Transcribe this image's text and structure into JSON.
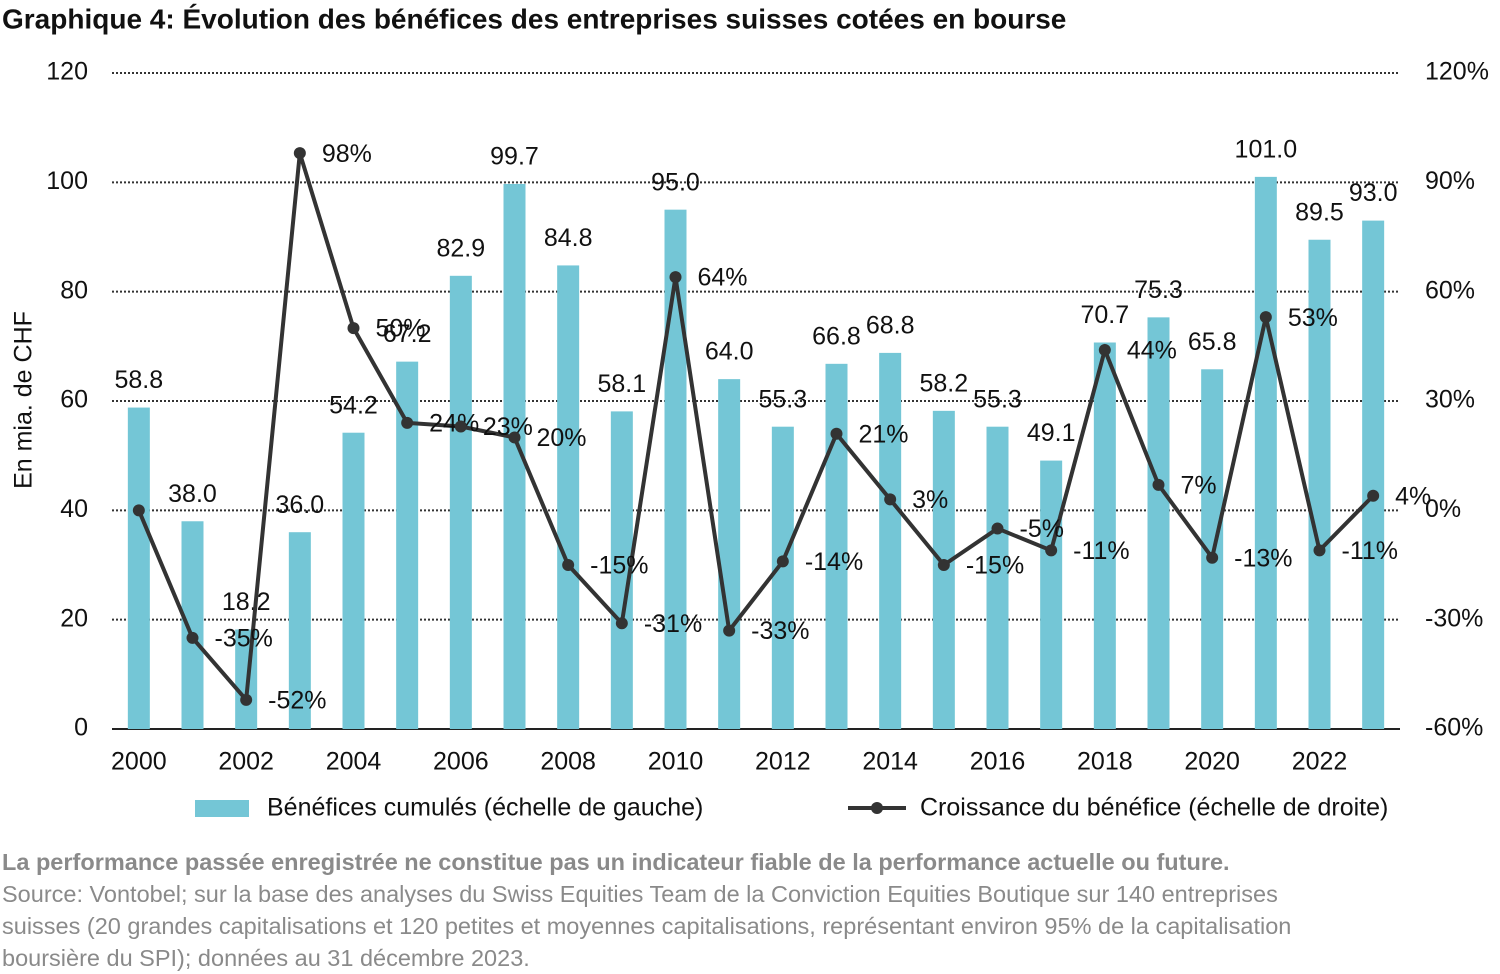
{
  "chart_data": {
    "type": "bar-line",
    "title": "Graphique 4: Évolution des bénéfices des entreprises suisses cotées en bourse",
    "y_label": "En mia. de CHF",
    "categories": [
      "2000",
      null,
      "2002",
      null,
      "2004",
      null,
      "2006",
      null,
      "2008",
      null,
      "2010",
      null,
      "2012",
      null,
      "2014",
      null,
      "2016",
      null,
      "2018",
      null,
      "2020",
      null,
      "2022",
      null
    ],
    "series": [
      {
        "name": "Bénéfices cumulés (échelle de gauche)",
        "type": "bar",
        "color": "#74c6d6",
        "values": [
          58.8,
          38.0,
          18.2,
          36.0,
          54.2,
          67.2,
          82.9,
          99.7,
          84.8,
          58.1,
          95.0,
          64.0,
          55.3,
          66.8,
          68.8,
          58.2,
          55.3,
          49.1,
          70.7,
          75.3,
          65.8,
          101.0,
          89.5,
          93.0
        ],
        "value_labels": [
          "58.8",
          "38.0",
          "18.2",
          "36.0",
          "54.2",
          "67.2",
          "82.9",
          "99.7",
          "84.8",
          "58.1",
          "95.0",
          "64.0",
          "55.3",
          "66.8",
          "68.8",
          "58.2",
          "55.3",
          "49.1",
          "70.7",
          "75.3",
          "65.8",
          "101.0",
          "89.5",
          "93.0"
        ]
      },
      {
        "name": "Croissance du bénéfice (échelle de droite)",
        "type": "line",
        "axis": "y2",
        "color": "#333333",
        "values": [
          0,
          -35,
          -52,
          98,
          50,
          24,
          23,
          20,
          -15,
          -31,
          64,
          -33,
          -14,
          21,
          3,
          -15,
          -5,
          -11,
          44,
          7,
          -13,
          53,
          -11,
          4
        ],
        "value_labels": [
          null,
          "-35%",
          "-52%",
          "98%",
          "50%",
          "24%",
          "23%",
          "20%",
          "-15%",
          "-31%",
          "64%",
          "-33%",
          "-14%",
          "21%",
          "3%",
          "-15%",
          "-5%",
          "-11%",
          "44%",
          "7%",
          "-13%",
          "53%",
          "-11%",
          "4%"
        ]
      }
    ],
    "ylim": [
      0,
      120
    ],
    "yticks": [
      0,
      20,
      40,
      60,
      80,
      100,
      120
    ],
    "y2lim": [
      -60,
      120
    ],
    "y2ticks": [
      {
        "value": -60,
        "label": "-60%"
      },
      {
        "value": -30,
        "label": "-30%"
      },
      {
        "value": 0,
        "label": "0%"
      },
      {
        "value": 30,
        "label": "30%"
      },
      {
        "value": 60,
        "label": "60%"
      },
      {
        "value": 90,
        "label": "90%"
      },
      {
        "value": 120,
        "label": "120%"
      }
    ],
    "grid": true,
    "legend": "bottom"
  },
  "footer": {
    "note": "La performance passée enregistrée ne constitue pas un indicateur fiable de la performance actuelle ou future.",
    "source": [
      "Source: Vontobel; sur la base des analyses du Swiss Equities Team de la Conviction Equities Boutique sur 140 entreprises",
      "suisses (20 grandes capitalisations et 120 petites et moyennes capitalisations, représentant environ 95% de la capitalisation",
      "boursière du SPI); données au 31 décembre 2023."
    ]
  }
}
